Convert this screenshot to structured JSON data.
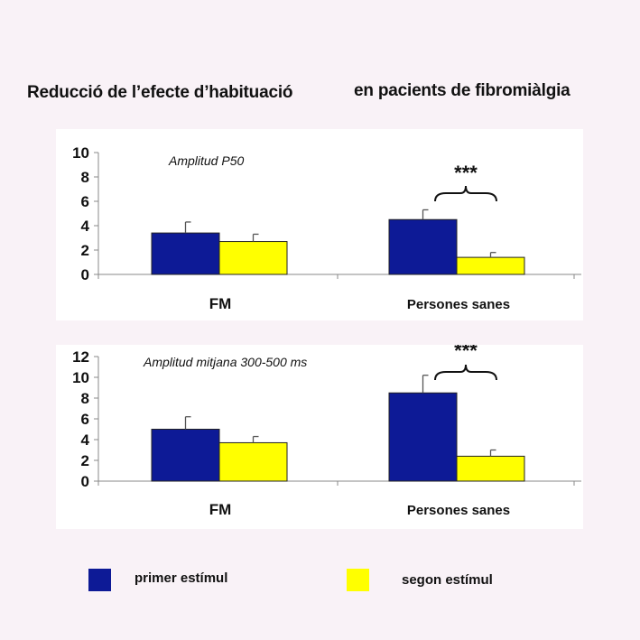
{
  "title_part1": "Reducció de l’efecte d’habituació",
  "title_part2": "en pacients de fibromiàlgia",
  "colors": {
    "series_1": "#0d1a96",
    "series_2": "#ffff00",
    "error_bar": "#555555",
    "axis": "#888888"
  },
  "legend": [
    {
      "label": "primer estímul",
      "color": "#0d1a96"
    },
    {
      "label": "segon estímul",
      "color": "#ffff00"
    }
  ],
  "chart_data": [
    {
      "type": "bar",
      "subtitle": "Amplitud P50",
      "categories": [
        "FM",
        "Persones sanes"
      ],
      "series": [
        {
          "name": "primer estímul",
          "values": [
            3.4,
            4.5
          ],
          "errors": [
            0.9,
            0.8
          ]
        },
        {
          "name": "segon estímul",
          "values": [
            2.7,
            1.4
          ],
          "errors": [
            0.6,
            0.4
          ]
        }
      ],
      "ylim": [
        0,
        10
      ],
      "yticks": [
        0,
        2,
        4,
        6,
        8,
        10
      ],
      "significance": {
        "category": "Persones sanes",
        "label": "***"
      }
    },
    {
      "type": "bar",
      "subtitle": "Amplitud mitjana 300-500 ms",
      "categories": [
        "FM",
        "Persones sanes"
      ],
      "series": [
        {
          "name": "primer estímul",
          "values": [
            5.0,
            8.5
          ],
          "errors": [
            1.2,
            1.7
          ]
        },
        {
          "name": "segon estímul",
          "values": [
            3.7,
            2.4
          ],
          "errors": [
            0.6,
            0.6
          ]
        }
      ],
      "ylim": [
        0,
        12
      ],
      "yticks": [
        0,
        2,
        4,
        6,
        8,
        10,
        12
      ],
      "significance": {
        "category": "Persones sanes",
        "label": "***"
      }
    }
  ]
}
